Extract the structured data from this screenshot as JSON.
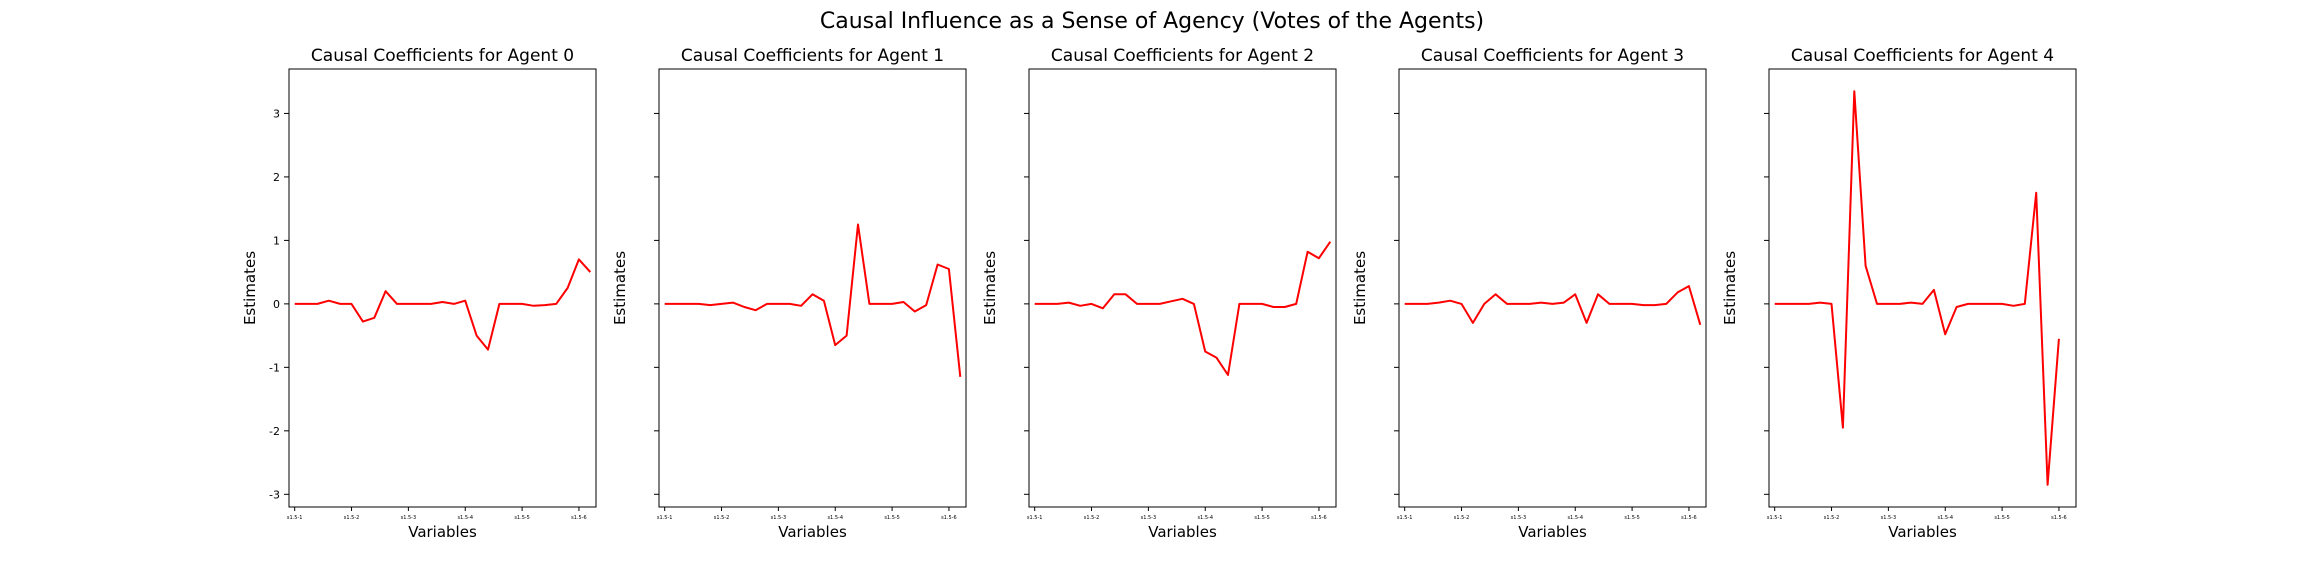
{
  "figure": {
    "title": "Causal Influence as a Sense of Agency (Votes of the Agents)",
    "line_color": "#ff0000"
  },
  "chart_data": [
    {
      "type": "line",
      "title": "Causal Coefficients for Agent 0",
      "xlabel": "Variables",
      "ylabel": "Estimates",
      "ylim": [
        -3.2,
        3.7
      ],
      "yticks": [
        -3,
        -2,
        -1,
        0,
        1,
        2,
        3
      ],
      "xtick_labels": [
        "s1.5-1",
        "s1.5-2",
        "s1.5-3",
        "s1.5-4",
        "s1.5-5",
        "s1.5-6"
      ],
      "xtick_positions": [
        0,
        5,
        10,
        15,
        20,
        25
      ],
      "x_range": [
        -0.5,
        26.5
      ],
      "y": [
        0,
        0,
        0,
        0.05,
        0,
        0,
        -0.28,
        -0.22,
        0.2,
        0,
        0,
        0,
        0,
        0.03,
        0,
        0.05,
        -0.5,
        -0.72,
        0,
        0,
        0,
        -0.03,
        -0.02,
        0,
        0.25,
        0.7,
        0.5
      ]
    },
    {
      "type": "line",
      "title": "Causal Coefficients for Agent 1",
      "xlabel": "Variables",
      "ylabel": "Estimates",
      "ylim": [
        -3.2,
        3.7
      ],
      "yticks": [
        -3,
        -2,
        -1,
        0,
        1,
        2,
        3
      ],
      "xtick_labels": [
        "s1.5-1",
        "s1.5-2",
        "s1.5-3",
        "s1.5-4",
        "s1.5-5",
        "s1.5-6"
      ],
      "xtick_positions": [
        0,
        5,
        10,
        15,
        20,
        25
      ],
      "x_range": [
        -0.5,
        26.5
      ],
      "y": [
        0,
        0,
        0,
        0,
        -0.02,
        0,
        0.02,
        -0.05,
        -0.1,
        0,
        0,
        0,
        -0.03,
        0.15,
        0.05,
        -0.65,
        -0.5,
        1.25,
        0,
        0,
        0,
        0.03,
        -0.12,
        -0.02,
        0.62,
        0.55,
        -1.15
      ]
    },
    {
      "type": "line",
      "title": "Causal Coefficients for Agent 2",
      "xlabel": "Variables",
      "ylabel": "Estimates",
      "ylim": [
        -3.2,
        3.7
      ],
      "yticks": [
        -3,
        -2,
        -1,
        0,
        1,
        2,
        3
      ],
      "xtick_labels": [
        "s1.5-1",
        "s1.5-2",
        "s1.5-3",
        "s1.5-4",
        "s1.5-5",
        "s1.5-6"
      ],
      "xtick_positions": [
        0,
        5,
        10,
        15,
        20,
        25
      ],
      "x_range": [
        -0.5,
        26.5
      ],
      "y": [
        0,
        0,
        0,
        0.02,
        -0.03,
        0,
        -0.07,
        0.15,
        0.15,
        0,
        0,
        0,
        0.04,
        0.08,
        0,
        -0.75,
        -0.85,
        -1.12,
        0,
        0,
        0,
        -0.05,
        -0.05,
        0,
        0.82,
        0.72,
        0.98
      ]
    },
    {
      "type": "line",
      "title": "Causal Coefficients for Agent 3",
      "xlabel": "Variables",
      "ylabel": "Estimates",
      "ylim": [
        -3.2,
        3.7
      ],
      "yticks": [
        -3,
        -2,
        -1,
        0,
        1,
        2,
        3
      ],
      "xtick_labels": [
        "s1.5-1",
        "s1.5-2",
        "s1.5-3",
        "s1.5-4",
        "s1.5-5",
        "s1.5-6"
      ],
      "xtick_positions": [
        0,
        5,
        10,
        15,
        20,
        25
      ],
      "x_range": [
        -0.5,
        26.5
      ],
      "y": [
        0,
        0,
        0,
        0.02,
        0.05,
        0,
        -0.3,
        0,
        0.15,
        0,
        0,
        0,
        0.02,
        0,
        0.02,
        0.15,
        -0.3,
        0.15,
        0,
        0,
        0,
        -0.02,
        -0.02,
        0,
        0.18,
        0.28,
        -0.33
      ]
    },
    {
      "type": "line",
      "title": "Causal Coefficients for Agent 4",
      "xlabel": "Variables",
      "ylabel": "Estimates",
      "ylim": [
        -3.2,
        3.7
      ],
      "yticks": [
        -3,
        -2,
        -1,
        0,
        1,
        2,
        3
      ],
      "xtick_labels": [
        "s1.5-1",
        "s1.5-2",
        "s1.5-3",
        "s1.5-4",
        "s1.5-5",
        "s1.5-6"
      ],
      "xtick_positions": [
        0,
        5,
        10,
        15,
        20,
        25
      ],
      "x_range": [
        -0.5,
        26.5
      ],
      "y": [
        0,
        0,
        0,
        0,
        0.02,
        0,
        -1.95,
        3.35,
        0.6,
        0,
        0,
        0,
        0.02,
        0,
        0.22,
        -0.48,
        -0.05,
        0,
        0,
        0,
        0,
        -0.03,
        0,
        1.75,
        -2.85,
        -0.55
      ]
    }
  ]
}
